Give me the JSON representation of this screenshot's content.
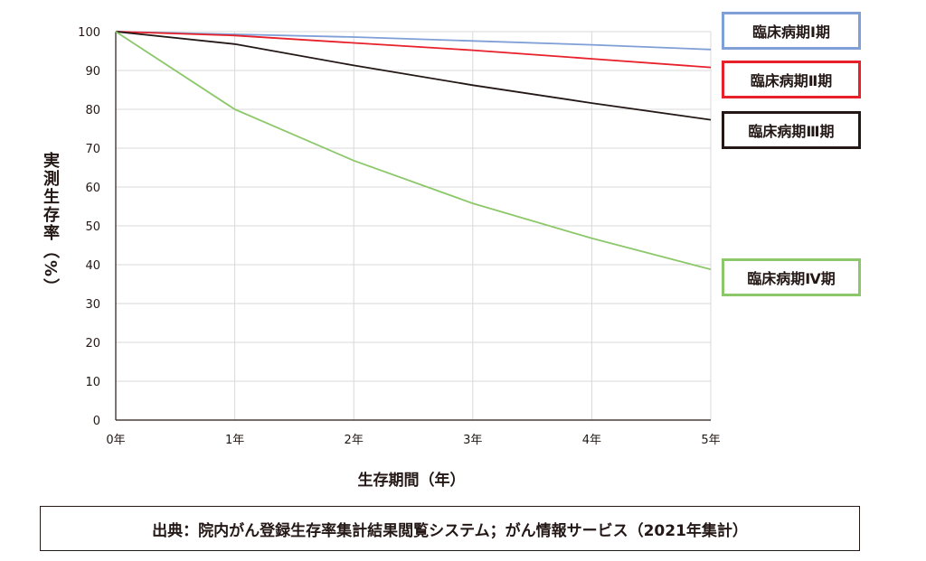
{
  "chart_data": {
    "type": "line",
    "xlabel": "生存期間（年）",
    "ylabel": "実測生存率（%）",
    "x": [
      0,
      1,
      2,
      3,
      4,
      5
    ],
    "x_tick_labels": [
      "0年",
      "1年",
      "2年",
      "3年",
      "4年",
      "5年"
    ],
    "y_ticks": [
      0,
      10,
      20,
      30,
      40,
      50,
      60,
      70,
      80,
      90,
      100
    ],
    "ylim": [
      0,
      100
    ],
    "xlim": [
      0,
      5
    ],
    "grid": true,
    "legend_placement": "right",
    "series": [
      {
        "name": "臨床病期Ⅰ期",
        "color": "#7f9fd6",
        "values": [
          100,
          99.3,
          98.6,
          97.6,
          96.6,
          95.4
        ]
      },
      {
        "name": "臨床病期Ⅱ期",
        "color": "#e8202a",
        "values": [
          100,
          99.0,
          97.1,
          95.2,
          93.0,
          90.8
        ]
      },
      {
        "name": "臨床病期Ⅲ期",
        "color": "#231815",
        "values": [
          100,
          96.8,
          91.3,
          86.2,
          81.6,
          77.3
        ]
      },
      {
        "name": "臨床病期Ⅳ期",
        "color": "#8cc86a",
        "values": [
          100,
          80.0,
          66.8,
          55.8,
          46.8,
          38.8
        ]
      }
    ]
  },
  "source": "出典：院内がん登録生存率集計結果閲覧システム；がん情報サービス（2021年集計）"
}
